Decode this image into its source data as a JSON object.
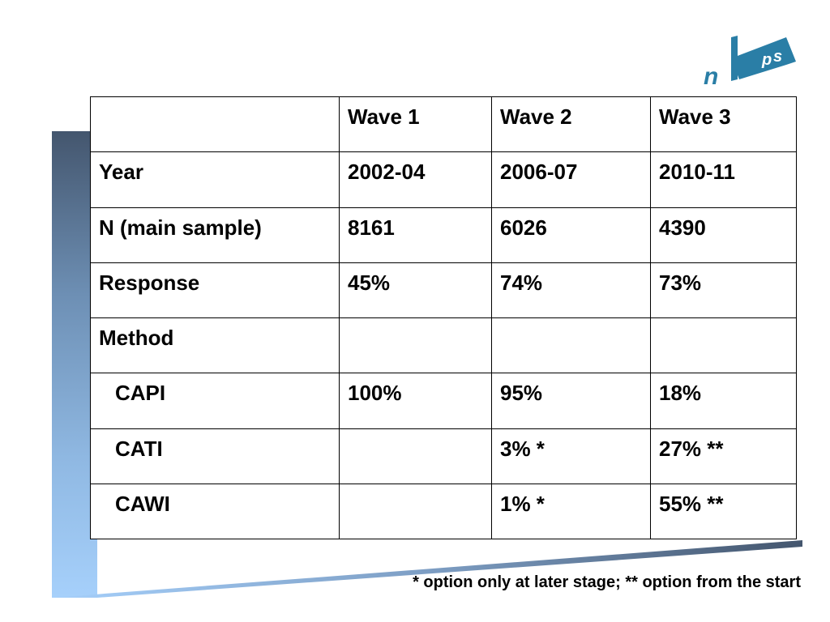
{
  "logo": {
    "text": "nkps",
    "letters": [
      "n",
      "k",
      "p",
      "s"
    ]
  },
  "table": {
    "header": [
      "",
      "Wave 1",
      "Wave 2",
      "Wave 3"
    ],
    "rows": [
      {
        "label": "Year",
        "indent": false,
        "values": [
          "2002-04",
          "2006-07",
          "2010-11"
        ]
      },
      {
        "label": "N (main sample)",
        "indent": false,
        "values": [
          "8161",
          "6026",
          "4390"
        ]
      },
      {
        "label": "Response",
        "indent": false,
        "values": [
          "45%",
          "74%",
          "73%"
        ]
      },
      {
        "label": "Method",
        "indent": false,
        "values": [
          "",
          "",
          ""
        ]
      },
      {
        "label": "CAPI",
        "indent": true,
        "values": [
          "100%",
          "95%",
          "18%"
        ]
      },
      {
        "label": "CATI",
        "indent": true,
        "values": [
          "",
          "3% *",
          "27% **"
        ]
      },
      {
        "label": "CAWI",
        "indent": true,
        "values": [
          "",
          "1% *",
          "55% **"
        ]
      }
    ]
  },
  "footnote": "* option only at later stage; ** option from the start",
  "colors": {
    "accent_dark": "#44566e",
    "accent_light": "#a6d0fb",
    "logo_blue": "#2a7ea6"
  }
}
